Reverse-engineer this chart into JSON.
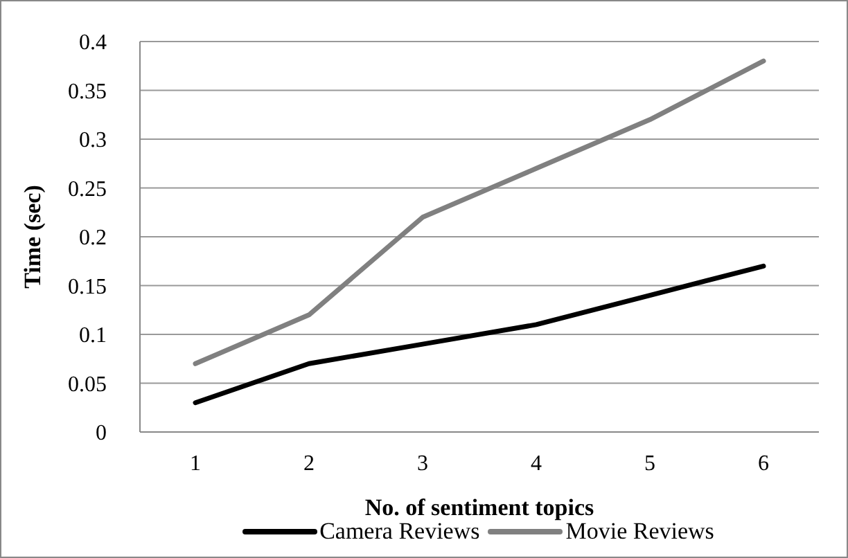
{
  "chart_data": {
    "type": "line",
    "xlabel": "No. of sentiment topics",
    "ylabel": "Time (sec)",
    "categories": [
      "1",
      "2",
      "3",
      "4",
      "5",
      "6"
    ],
    "series": [
      {
        "name": "Camera Reviews",
        "color": "#000000",
        "values": [
          0.03,
          0.07,
          0.09,
          0.11,
          0.14,
          0.17
        ]
      },
      {
        "name": "Movie Reviews",
        "color": "#808080",
        "values": [
          0.07,
          0.12,
          0.22,
          0.27,
          0.32,
          0.38
        ]
      }
    ],
    "ylim": [
      0,
      0.4
    ],
    "yticks": [
      0,
      0.05,
      0.1,
      0.15,
      0.2,
      0.25,
      0.3,
      0.35,
      0.4
    ],
    "grid": "y",
    "legend": "bottom",
    "marker": "none",
    "line_style": "solid"
  }
}
